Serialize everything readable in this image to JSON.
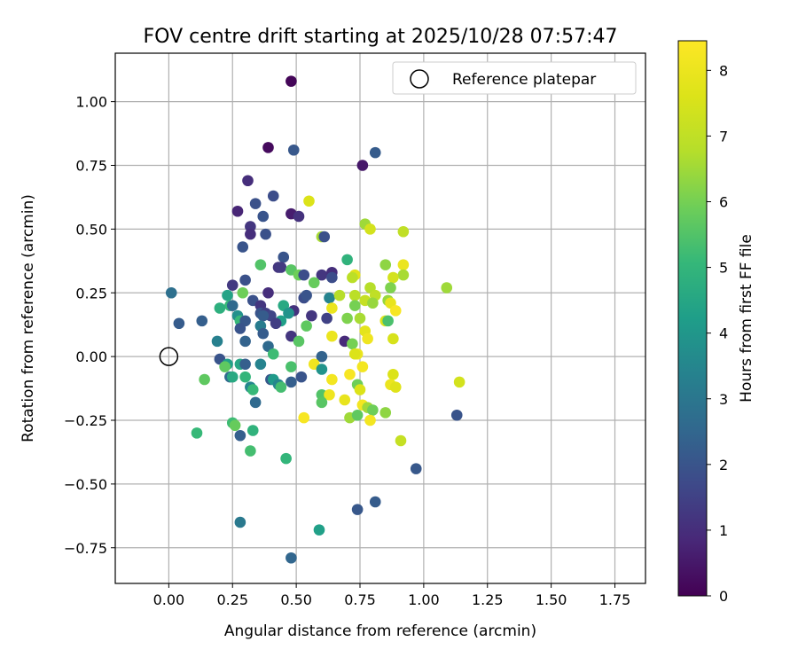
{
  "chart_data": {
    "type": "scatter",
    "title": "FOV centre drift starting at 2025/10/28 07:57:47",
    "xlabel": "Angular distance from reference (arcmin)",
    "ylabel": "Rotation from reference (arcmin)",
    "xlim": [
      -0.21,
      1.87
    ],
    "ylim": [
      -0.89,
      1.19
    ],
    "xticks": [
      "0.00",
      "0.25",
      "0.50",
      "0.75",
      "1.00",
      "1.25",
      "1.50",
      "1.75"
    ],
    "xtick_values": [
      0,
      0.25,
      0.5,
      0.75,
      1.0,
      1.25,
      1.5,
      1.75
    ],
    "yticks": [
      "−0.75",
      "−0.50",
      "−0.25",
      "0.00",
      "0.25",
      "0.50",
      "0.75",
      "1.00"
    ],
    "ytick_values": [
      -0.75,
      -0.5,
      -0.25,
      0,
      0.25,
      0.5,
      0.75,
      1.0
    ],
    "grid": true,
    "legend": {
      "label": "Reference platepar",
      "placement": "top-right"
    },
    "reference_point": {
      "x": 0.0,
      "y": 0.0
    },
    "colorbar": {
      "label": "Hours from first FF file",
      "min": 0,
      "max": 8.45,
      "ticks": [
        "0",
        "1",
        "2",
        "3",
        "4",
        "5",
        "6",
        "7",
        "8"
      ],
      "tick_values": [
        0,
        1,
        2,
        3,
        4,
        5,
        6,
        7,
        8
      ],
      "colormap": "viridis"
    },
    "points": [
      {
        "x": 0.48,
        "y": 1.08,
        "h": 0.1
      },
      {
        "x": 0.39,
        "y": 0.82,
        "h": 0.2
      },
      {
        "x": 0.76,
        "y": 0.75,
        "h": 0.5
      },
      {
        "x": 0.49,
        "y": 0.81,
        "h": 2.1
      },
      {
        "x": 0.81,
        "y": 0.8,
        "h": 2.2
      },
      {
        "x": 0.31,
        "y": 0.69,
        "h": 1.0
      },
      {
        "x": 0.41,
        "y": 0.63,
        "h": 1.8
      },
      {
        "x": 0.55,
        "y": 0.61,
        "h": 7.6
      },
      {
        "x": 0.27,
        "y": 0.57,
        "h": 0.8
      },
      {
        "x": 0.34,
        "y": 0.6,
        "h": 1.9
      },
      {
        "x": 0.48,
        "y": 0.56,
        "h": 0.6
      },
      {
        "x": 0.51,
        "y": 0.55,
        "h": 1.1
      },
      {
        "x": 0.37,
        "y": 0.55,
        "h": 2.0
      },
      {
        "x": 0.77,
        "y": 0.52,
        "h": 6.5
      },
      {
        "x": 0.32,
        "y": 0.51,
        "h": 1.2
      },
      {
        "x": 0.29,
        "y": 0.43,
        "h": 2.0
      },
      {
        "x": 0.32,
        "y": 0.48,
        "h": 1.0
      },
      {
        "x": 0.38,
        "y": 0.48,
        "h": 1.9
      },
      {
        "x": 0.6,
        "y": 0.47,
        "h": 6.6
      },
      {
        "x": 0.61,
        "y": 0.47,
        "h": 1.9
      },
      {
        "x": 0.79,
        "y": 0.5,
        "h": 7.4
      },
      {
        "x": 0.92,
        "y": 0.49,
        "h": 7.0
      },
      {
        "x": 0.45,
        "y": 0.39,
        "h": 2.0
      },
      {
        "x": 0.7,
        "y": 0.38,
        "h": 4.9
      },
      {
        "x": 0.36,
        "y": 0.36,
        "h": 5.5
      },
      {
        "x": 0.43,
        "y": 0.35,
        "h": 1.2
      },
      {
        "x": 0.44,
        "y": 0.35,
        "h": 1.3
      },
      {
        "x": 0.48,
        "y": 0.34,
        "h": 5.6
      },
      {
        "x": 0.51,
        "y": 0.32,
        "h": 5.9
      },
      {
        "x": 0.53,
        "y": 0.32,
        "h": 1.8
      },
      {
        "x": 0.6,
        "y": 0.32,
        "h": 1.2
      },
      {
        "x": 0.64,
        "y": 0.33,
        "h": 1.0
      },
      {
        "x": 0.64,
        "y": 0.31,
        "h": 1.8
      },
      {
        "x": 0.73,
        "y": 0.32,
        "h": 7.7
      },
      {
        "x": 0.72,
        "y": 0.31,
        "h": 6.9
      },
      {
        "x": 0.85,
        "y": 0.36,
        "h": 6.3
      },
      {
        "x": 0.92,
        "y": 0.36,
        "h": 8.0
      },
      {
        "x": 0.92,
        "y": 0.32,
        "h": 6.6
      },
      {
        "x": 0.88,
        "y": 0.31,
        "h": 7.4
      },
      {
        "x": 0.3,
        "y": 0.3,
        "h": 1.9
      },
      {
        "x": 0.25,
        "y": 0.28,
        "h": 1.3
      },
      {
        "x": 0.57,
        "y": 0.29,
        "h": 5.8
      },
      {
        "x": 0.79,
        "y": 0.27,
        "h": 6.8
      },
      {
        "x": 0.87,
        "y": 0.27,
        "h": 6.1
      },
      {
        "x": 1.09,
        "y": 0.27,
        "h": 6.5
      },
      {
        "x": 0.01,
        "y": 0.25,
        "h": 2.8
      },
      {
        "x": 0.29,
        "y": 0.25,
        "h": 5.9
      },
      {
        "x": 0.23,
        "y": 0.24,
        "h": 4.4
      },
      {
        "x": 0.39,
        "y": 0.25,
        "h": 1.0
      },
      {
        "x": 0.53,
        "y": 0.23,
        "h": 1.8
      },
      {
        "x": 0.54,
        "y": 0.24,
        "h": 2.0
      },
      {
        "x": 0.63,
        "y": 0.23,
        "h": 3.4
      },
      {
        "x": 0.67,
        "y": 0.24,
        "h": 6.8
      },
      {
        "x": 0.73,
        "y": 0.24,
        "h": 6.9
      },
      {
        "x": 0.73,
        "y": 0.2,
        "h": 6.0
      },
      {
        "x": 0.77,
        "y": 0.22,
        "h": 7.1
      },
      {
        "x": 0.81,
        "y": 0.24,
        "h": 7.0
      },
      {
        "x": 0.8,
        "y": 0.21,
        "h": 6.4
      },
      {
        "x": 0.86,
        "y": 0.22,
        "h": 6.4
      },
      {
        "x": 0.87,
        "y": 0.21,
        "h": 7.9
      },
      {
        "x": 0.89,
        "y": 0.18,
        "h": 8.3
      },
      {
        "x": 0.33,
        "y": 0.22,
        "h": 1.9
      },
      {
        "x": 0.24,
        "y": 0.2,
        "h": 5.1
      },
      {
        "x": 0.25,
        "y": 0.2,
        "h": 2.6
      },
      {
        "x": 0.2,
        "y": 0.19,
        "h": 4.8
      },
      {
        "x": 0.36,
        "y": 0.2,
        "h": 1.2
      },
      {
        "x": 0.36,
        "y": 0.17,
        "h": 2.0
      },
      {
        "x": 0.38,
        "y": 0.17,
        "h": 1.4
      },
      {
        "x": 0.4,
        "y": 0.16,
        "h": 1.6
      },
      {
        "x": 0.45,
        "y": 0.2,
        "h": 4.6
      },
      {
        "x": 0.49,
        "y": 0.18,
        "h": 1.1
      },
      {
        "x": 0.47,
        "y": 0.17,
        "h": 3.9
      },
      {
        "x": 0.56,
        "y": 0.16,
        "h": 1.2
      },
      {
        "x": 0.62,
        "y": 0.15,
        "h": 1.5
      },
      {
        "x": 0.64,
        "y": 0.19,
        "h": 8.0
      },
      {
        "x": 0.7,
        "y": 0.15,
        "h": 6.1
      },
      {
        "x": 0.75,
        "y": 0.15,
        "h": 6.6
      },
      {
        "x": 0.85,
        "y": 0.14,
        "h": 7.6
      },
      {
        "x": 0.86,
        "y": 0.14,
        "h": 5.4
      },
      {
        "x": 0.04,
        "y": 0.13,
        "h": 2.2
      },
      {
        "x": 0.13,
        "y": 0.14,
        "h": 2.3
      },
      {
        "x": 0.27,
        "y": 0.16,
        "h": 3.8
      },
      {
        "x": 0.28,
        "y": 0.14,
        "h": 5.1
      },
      {
        "x": 0.3,
        "y": 0.14,
        "h": 2.1
      },
      {
        "x": 0.37,
        "y": 0.16,
        "h": 2.2
      },
      {
        "x": 0.44,
        "y": 0.14,
        "h": 4.3
      },
      {
        "x": 0.42,
        "y": 0.13,
        "h": 1.4
      },
      {
        "x": 0.54,
        "y": 0.12,
        "h": 5.7
      },
      {
        "x": 0.28,
        "y": 0.11,
        "h": 2.0
      },
      {
        "x": 0.36,
        "y": 0.12,
        "h": 3.2
      },
      {
        "x": 0.64,
        "y": 0.08,
        "h": 8.0
      },
      {
        "x": 0.69,
        "y": 0.06,
        "h": 0.9
      },
      {
        "x": 0.72,
        "y": 0.05,
        "h": 6.0
      },
      {
        "x": 0.77,
        "y": 0.1,
        "h": 7.8
      },
      {
        "x": 0.78,
        "y": 0.07,
        "h": 8.1
      },
      {
        "x": 0.88,
        "y": 0.07,
        "h": 7.5
      },
      {
        "x": 0.3,
        "y": 0.06,
        "h": 2.4
      },
      {
        "x": 0.19,
        "y": 0.06,
        "h": 3.3
      },
      {
        "x": 0.37,
        "y": 0.09,
        "h": 2.2
      },
      {
        "x": 0.48,
        "y": 0.08,
        "h": 1.2
      },
      {
        "x": 0.51,
        "y": 0.06,
        "h": 5.6
      },
      {
        "x": 0.39,
        "y": 0.04,
        "h": 2.6
      },
      {
        "x": 0.41,
        "y": 0.01,
        "h": 5.2
      },
      {
        "x": 0.6,
        "y": 0.0,
        "h": 2.4
      },
      {
        "x": 0.74,
        "y": 0.01,
        "h": 8.0
      },
      {
        "x": 0.73,
        "y": 0.01,
        "h": 7.6
      },
      {
        "x": 0.2,
        "y": -0.01,
        "h": 2.0
      },
      {
        "x": 0.23,
        "y": -0.03,
        "h": 4.3
      },
      {
        "x": 0.22,
        "y": -0.04,
        "h": 5.7
      },
      {
        "x": 0.28,
        "y": -0.03,
        "h": 4.5
      },
      {
        "x": 0.3,
        "y": -0.03,
        "h": 2.3
      },
      {
        "x": 0.36,
        "y": -0.03,
        "h": 3.4
      },
      {
        "x": 0.48,
        "y": -0.04,
        "h": 5.4
      },
      {
        "x": 0.57,
        "y": -0.03,
        "h": 8.1
      },
      {
        "x": 0.6,
        "y": -0.05,
        "h": 3.9
      },
      {
        "x": 0.76,
        "y": -0.04,
        "h": 8.2
      },
      {
        "x": 0.24,
        "y": -0.08,
        "h": 2.6
      },
      {
        "x": 0.25,
        "y": -0.08,
        "h": 4.6
      },
      {
        "x": 0.3,
        "y": -0.08,
        "h": 5.0
      },
      {
        "x": 0.4,
        "y": -0.09,
        "h": 2.1
      },
      {
        "x": 0.41,
        "y": -0.09,
        "h": 4.1
      },
      {
        "x": 0.48,
        "y": -0.1,
        "h": 2.3
      },
      {
        "x": 0.52,
        "y": -0.08,
        "h": 2.0
      },
      {
        "x": 0.64,
        "y": -0.09,
        "h": 8.2
      },
      {
        "x": 0.71,
        "y": -0.07,
        "h": 8.3
      },
      {
        "x": 0.88,
        "y": -0.07,
        "h": 7.6
      },
      {
        "x": 0.87,
        "y": -0.11,
        "h": 8.0
      },
      {
        "x": 0.89,
        "y": -0.12,
        "h": 7.7
      },
      {
        "x": 1.14,
        "y": -0.1,
        "h": 7.4
      },
      {
        "x": 0.14,
        "y": -0.09,
        "h": 5.7
      },
      {
        "x": 0.32,
        "y": -0.12,
        "h": 3.5
      },
      {
        "x": 0.33,
        "y": -0.13,
        "h": 5.1
      },
      {
        "x": 0.43,
        "y": -0.11,
        "h": 3.5
      },
      {
        "x": 0.44,
        "y": -0.12,
        "h": 5.3
      },
      {
        "x": 0.74,
        "y": -0.11,
        "h": 5.9
      },
      {
        "x": 0.75,
        "y": -0.13,
        "h": 7.6
      },
      {
        "x": 0.6,
        "y": -0.15,
        "h": 5.5
      },
      {
        "x": 0.63,
        "y": -0.15,
        "h": 8.1
      },
      {
        "x": 0.34,
        "y": -0.18,
        "h": 2.6
      },
      {
        "x": 0.6,
        "y": -0.18,
        "h": 5.6
      },
      {
        "x": 0.69,
        "y": -0.17,
        "h": 7.9
      },
      {
        "x": 0.76,
        "y": -0.19,
        "h": 8.2
      },
      {
        "x": 0.78,
        "y": -0.2,
        "h": 6.5
      },
      {
        "x": 0.8,
        "y": -0.21,
        "h": 5.9
      },
      {
        "x": 0.85,
        "y": -0.22,
        "h": 6.3
      },
      {
        "x": 0.53,
        "y": -0.24,
        "h": 8.3
      },
      {
        "x": 0.71,
        "y": -0.24,
        "h": 6.5
      },
      {
        "x": 0.74,
        "y": -0.23,
        "h": 5.7
      },
      {
        "x": 0.79,
        "y": -0.25,
        "h": 8.2
      },
      {
        "x": 1.13,
        "y": -0.23,
        "h": 2.0
      },
      {
        "x": 0.25,
        "y": -0.26,
        "h": 5.2
      },
      {
        "x": 0.26,
        "y": -0.27,
        "h": 5.8
      },
      {
        "x": 0.11,
        "y": -0.3,
        "h": 5.1
      },
      {
        "x": 0.28,
        "y": -0.31,
        "h": 2.3
      },
      {
        "x": 0.33,
        "y": -0.29,
        "h": 4.9
      },
      {
        "x": 0.91,
        "y": -0.33,
        "h": 7.1
      },
      {
        "x": 0.32,
        "y": -0.37,
        "h": 5.3
      },
      {
        "x": 0.46,
        "y": -0.4,
        "h": 5.0
      },
      {
        "x": 0.97,
        "y": -0.44,
        "h": 2.1
      },
      {
        "x": 0.81,
        "y": -0.57,
        "h": 2.2
      },
      {
        "x": 0.74,
        "y": -0.6,
        "h": 2.1
      },
      {
        "x": 0.28,
        "y": -0.65,
        "h": 3.1
      },
      {
        "x": 0.59,
        "y": -0.68,
        "h": 4.3
      },
      {
        "x": 0.48,
        "y": -0.79,
        "h": 2.5
      }
    ]
  }
}
